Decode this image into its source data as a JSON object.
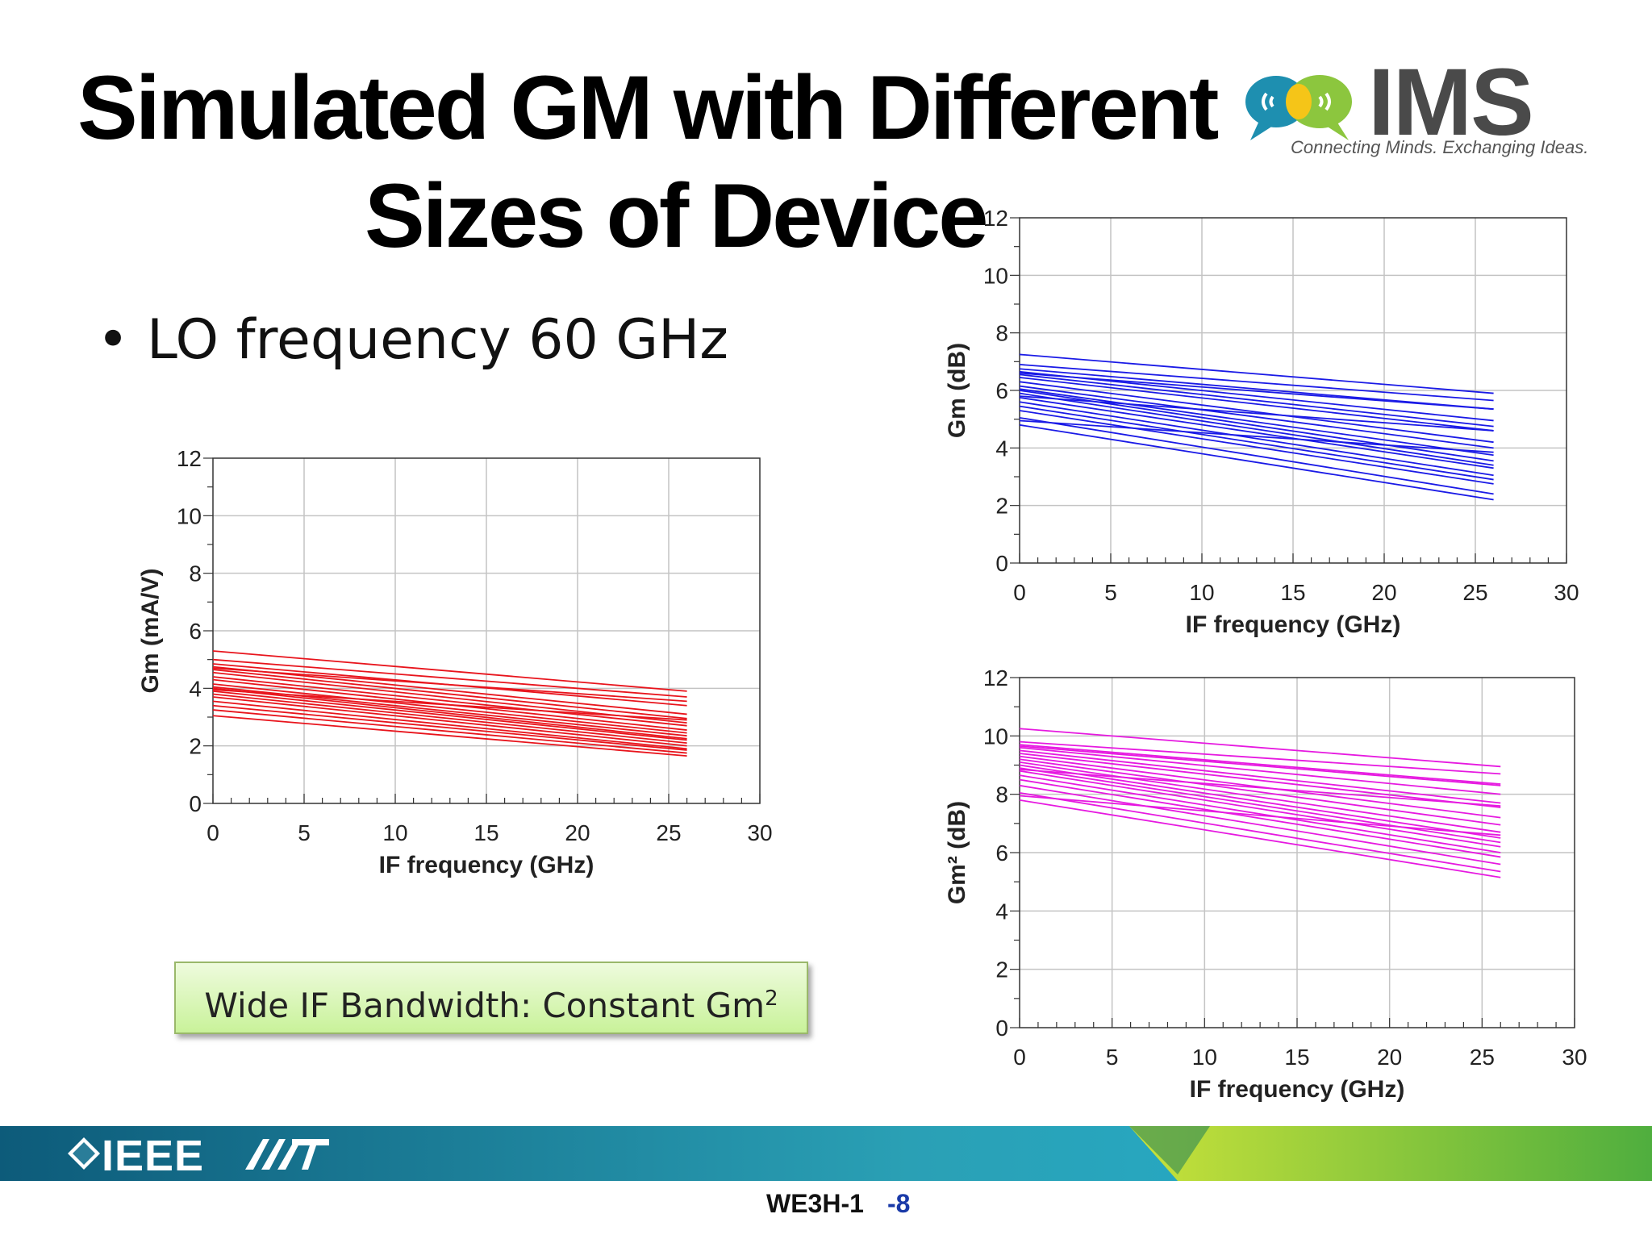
{
  "slide": {
    "title_line1": "Simulated GM with Different",
    "title_line2": "Sizes of Device",
    "bullet": "LO frequency 60 GHz",
    "callout_main": "Wide IF Bandwidth: Constant Gm",
    "callout_sup": "2",
    "footer_code": "WE3H-1",
    "footer_page": "-8"
  },
  "logo": {
    "name": "IMS",
    "tagline": "Connecting Minds. Exchanging Ideas."
  },
  "footer_brand": "IEEE",
  "colors": {
    "chart1": "#e8141c",
    "chart2": "#1a1ae6",
    "chart3": "#e619e0",
    "grid": "#c4c4c4",
    "callout_bg": "#d6f5b3",
    "footer_teal": "#1f7f93",
    "footer_green": "#8fc43a"
  },
  "chart_data": [
    {
      "type": "line",
      "title": "",
      "xlabel": "IF frequency (GHz)",
      "ylabel": "Gm (mA/V)",
      "xlim": [
        0,
        30
      ],
      "ylim": [
        0,
        12
      ],
      "xticks": [
        0,
        5,
        10,
        15,
        20,
        25,
        30
      ],
      "yticks": [
        0,
        2,
        4,
        6,
        8,
        10,
        12
      ],
      "grid": true,
      "series": [
        {
          "x": [
            0,
            26
          ],
          "y": [
            5.3,
            3.9
          ]
        },
        {
          "x": [
            0,
            26
          ],
          "y": [
            5.0,
            3.7
          ]
        },
        {
          "x": [
            0,
            26
          ],
          "y": [
            4.85,
            3.4
          ]
        },
        {
          "x": [
            0,
            26
          ],
          "y": [
            4.75,
            3.1
          ]
        },
        {
          "x": [
            0,
            26
          ],
          "y": [
            4.65,
            2.95
          ]
        },
        {
          "x": [
            0,
            26
          ],
          "y": [
            4.55,
            2.8
          ]
        },
        {
          "x": [
            0,
            26
          ],
          "y": [
            4.4,
            2.7
          ]
        },
        {
          "x": [
            0,
            26
          ],
          "y": [
            4.3,
            2.55
          ]
        },
        {
          "x": [
            0,
            26
          ],
          "y": [
            4.15,
            2.45
          ]
        },
        {
          "x": [
            0,
            26
          ],
          "y": [
            4.05,
            2.35
          ]
        },
        {
          "x": [
            0,
            26
          ],
          "y": [
            4.0,
            2.25
          ]
        },
        {
          "x": [
            0,
            26
          ],
          "y": [
            3.9,
            2.2
          ]
        },
        {
          "x": [
            0,
            26
          ],
          "y": [
            3.8,
            2.1
          ]
        },
        {
          "x": [
            0,
            26
          ],
          "y": [
            3.7,
            2.0
          ]
        },
        {
          "x": [
            0,
            26
          ],
          "y": [
            3.55,
            1.9
          ]
        },
        {
          "x": [
            0,
            26
          ],
          "y": [
            3.4,
            1.85
          ]
        },
        {
          "x": [
            0,
            26
          ],
          "y": [
            3.25,
            1.75
          ]
        },
        {
          "x": [
            0,
            26
          ],
          "y": [
            3.05,
            1.65
          ]
        },
        {
          "x": [
            0,
            26
          ],
          "y": [
            4.7,
            3.55
          ]
        },
        {
          "x": [
            0,
            26
          ],
          "y": [
            3.95,
            2.9
          ]
        }
      ]
    },
    {
      "type": "line",
      "title": "",
      "xlabel": "IF frequency (GHz)",
      "ylabel": "Gm (dB)",
      "xlim": [
        0,
        30
      ],
      "ylim": [
        0,
        12
      ],
      "xticks": [
        0,
        5,
        10,
        15,
        20,
        25,
        30
      ],
      "yticks": [
        0,
        2,
        4,
        6,
        8,
        10,
        12
      ],
      "grid": true,
      "series": [
        {
          "x": [
            0,
            26
          ],
          "y": [
            7.25,
            5.9
          ]
        },
        {
          "x": [
            0,
            26
          ],
          "y": [
            6.9,
            5.65
          ]
        },
        {
          "x": [
            0,
            26
          ],
          "y": [
            6.75,
            5.35
          ]
        },
        {
          "x": [
            0,
            26
          ],
          "y": [
            6.65,
            4.95
          ]
        },
        {
          "x": [
            0,
            26
          ],
          "y": [
            6.55,
            4.75
          ]
        },
        {
          "x": [
            0,
            26
          ],
          "y": [
            6.45,
            4.6
          ]
        },
        {
          "x": [
            0,
            26
          ],
          "y": [
            6.3,
            4.2
          ]
        },
        {
          "x": [
            0,
            26
          ],
          "y": [
            6.15,
            4.0
          ]
        },
        {
          "x": [
            0,
            26
          ],
          "y": [
            6.05,
            3.75
          ]
        },
        {
          "x": [
            0,
            26
          ],
          "y": [
            6.0,
            3.55
          ]
        },
        {
          "x": [
            0,
            26
          ],
          "y": [
            5.9,
            3.4
          ]
        },
        {
          "x": [
            0,
            26
          ],
          "y": [
            5.75,
            3.3
          ]
        },
        {
          "x": [
            0,
            26
          ],
          "y": [
            5.6,
            3.05
          ]
        },
        {
          "x": [
            0,
            26
          ],
          "y": [
            5.45,
            2.9
          ]
        },
        {
          "x": [
            0,
            26
          ],
          "y": [
            5.3,
            2.75
          ]
        },
        {
          "x": [
            0,
            26
          ],
          "y": [
            5.05,
            2.4
          ]
        },
        {
          "x": [
            0,
            26
          ],
          "y": [
            4.8,
            2.2
          ]
        },
        {
          "x": [
            0,
            26
          ],
          "y": [
            6.6,
            5.35
          ]
        },
        {
          "x": [
            0,
            26
          ],
          "y": [
            5.8,
            4.6
          ]
        },
        {
          "x": [
            0,
            26
          ],
          "y": [
            4.95,
            3.85
          ]
        }
      ]
    },
    {
      "type": "line",
      "title": "",
      "xlabel": "IF frequency (GHz)",
      "ylabel": "Gm² (dB)",
      "xlim": [
        0,
        30
      ],
      "ylim": [
        0,
        12
      ],
      "xticks": [
        0,
        5,
        10,
        15,
        20,
        25,
        30
      ],
      "yticks": [
        0,
        2,
        4,
        6,
        8,
        10,
        12
      ],
      "grid": true,
      "series": [
        {
          "x": [
            0,
            26
          ],
          "y": [
            10.25,
            8.95
          ]
        },
        {
          "x": [
            0,
            26
          ],
          "y": [
            9.8,
            8.7
          ]
        },
        {
          "x": [
            0,
            26
          ],
          "y": [
            9.7,
            8.35
          ]
        },
        {
          "x": [
            0,
            26
          ],
          "y": [
            9.6,
            8.0
          ]
        },
        {
          "x": [
            0,
            26
          ],
          "y": [
            9.5,
            7.7
          ]
        },
        {
          "x": [
            0,
            26
          ],
          "y": [
            9.4,
            7.55
          ]
        },
        {
          "x": [
            0,
            26
          ],
          "y": [
            9.3,
            7.2
          ]
        },
        {
          "x": [
            0,
            26
          ],
          "y": [
            9.2,
            6.95
          ]
        },
        {
          "x": [
            0,
            26
          ],
          "y": [
            9.1,
            6.7
          ]
        },
        {
          "x": [
            0,
            26
          ],
          "y": [
            9.0,
            6.5
          ]
        },
        {
          "x": [
            0,
            26
          ],
          "y": [
            8.9,
            6.35
          ]
        },
        {
          "x": [
            0,
            26
          ],
          "y": [
            8.8,
            6.2
          ]
        },
        {
          "x": [
            0,
            26
          ],
          "y": [
            8.65,
            6.0
          ]
        },
        {
          "x": [
            0,
            26
          ],
          "y": [
            8.5,
            5.85
          ]
        },
        {
          "x": [
            0,
            26
          ],
          "y": [
            8.3,
            5.6
          ]
        },
        {
          "x": [
            0,
            26
          ],
          "y": [
            8.05,
            5.35
          ]
        },
        {
          "x": [
            0,
            26
          ],
          "y": [
            7.8,
            5.15
          ]
        },
        {
          "x": [
            0,
            26
          ],
          "y": [
            9.65,
            8.3
          ]
        },
        {
          "x": [
            0,
            26
          ],
          "y": [
            8.85,
            7.6
          ]
        },
        {
          "x": [
            0,
            26
          ],
          "y": [
            7.95,
            6.6
          ]
        }
      ]
    }
  ]
}
